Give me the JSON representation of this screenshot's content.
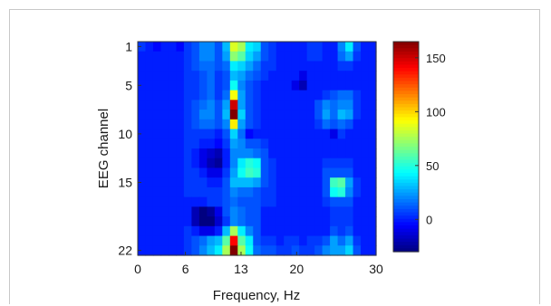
{
  "chart_data": {
    "type": "heatmap",
    "title": "",
    "xlabel": "Frequency, Hz",
    "ylabel": "EEG channel",
    "x_tick_labels": [
      "0",
      "6",
      "13",
      "20",
      "30"
    ],
    "x_tick_values": [
      0,
      6,
      13,
      20,
      30
    ],
    "y_tick_labels": [
      "1",
      "5",
      "10",
      "15",
      "22"
    ],
    "y_tick_values": [
      1,
      5,
      10,
      15,
      22
    ],
    "xlim": [
      0,
      30
    ],
    "ylim": [
      1,
      22
    ],
    "colorbar": {
      "colormap": "jet",
      "range": [
        -30,
        165
      ],
      "tick_labels": [
        "150",
        "100",
        "50",
        "0"
      ],
      "tick_values": [
        150,
        100,
        50,
        0
      ]
    },
    "frequencies": [
      0,
      1,
      2,
      3,
      4,
      5,
      6,
      7,
      8,
      9,
      10,
      11,
      12,
      13,
      14,
      15,
      16,
      17,
      18,
      19,
      20,
      21,
      22,
      23,
      24,
      25,
      26,
      27,
      28,
      29,
      30
    ],
    "channels": [
      1,
      2,
      3,
      4,
      5,
      6,
      7,
      8,
      9,
      10,
      11,
      12,
      13,
      14,
      15,
      16,
      17,
      18,
      19,
      20,
      21,
      22
    ],
    "values": [
      [
        5,
        0,
        -5,
        0,
        0,
        -5,
        5,
        10,
        20,
        20,
        10,
        30,
        85,
        75,
        40,
        35,
        10,
        5,
        0,
        0,
        0,
        0,
        5,
        5,
        0,
        0,
        20,
        40,
        10,
        0,
        0
      ],
      [
        0,
        0,
        0,
        0,
        0,
        0,
        5,
        10,
        20,
        20,
        10,
        25,
        70,
        60,
        35,
        25,
        10,
        5,
        0,
        0,
        0,
        0,
        5,
        5,
        0,
        0,
        15,
        25,
        5,
        0,
        0
      ],
      [
        0,
        0,
        0,
        0,
        0,
        0,
        5,
        10,
        15,
        15,
        10,
        15,
        40,
        35,
        25,
        15,
        5,
        5,
        0,
        0,
        0,
        0,
        0,
        0,
        0,
        0,
        5,
        5,
        0,
        0,
        0
      ],
      [
        0,
        0,
        0,
        0,
        0,
        0,
        5,
        5,
        10,
        15,
        5,
        10,
        30,
        25,
        15,
        10,
        5,
        0,
        0,
        0,
        0,
        -10,
        0,
        0,
        0,
        0,
        0,
        0,
        0,
        0,
        0
      ],
      [
        0,
        0,
        0,
        0,
        0,
        0,
        5,
        5,
        10,
        15,
        5,
        10,
        45,
        20,
        10,
        5,
        0,
        0,
        0,
        0,
        -10,
        -20,
        0,
        0,
        0,
        0,
        0,
        0,
        0,
        0,
        0
      ],
      [
        0,
        0,
        0,
        0,
        0,
        0,
        5,
        5,
        10,
        15,
        5,
        15,
        90,
        25,
        10,
        5,
        0,
        0,
        0,
        0,
        0,
        0,
        0,
        0,
        5,
        10,
        15,
        15,
        5,
        0,
        0
      ],
      [
        0,
        0,
        0,
        0,
        0,
        0,
        5,
        10,
        15,
        20,
        10,
        25,
        150,
        25,
        10,
        5,
        0,
        0,
        0,
        0,
        0,
        0,
        0,
        10,
        20,
        15,
        20,
        20,
        5,
        0,
        0
      ],
      [
        0,
        0,
        0,
        0,
        0,
        0,
        5,
        10,
        20,
        20,
        10,
        30,
        165,
        35,
        10,
        5,
        0,
        0,
        0,
        0,
        0,
        0,
        0,
        10,
        25,
        15,
        30,
        25,
        5,
        0,
        0
      ],
      [
        0,
        0,
        0,
        0,
        0,
        0,
        5,
        10,
        15,
        15,
        10,
        20,
        95,
        25,
        10,
        5,
        0,
        0,
        0,
        0,
        0,
        0,
        0,
        5,
        15,
        10,
        15,
        10,
        0,
        0,
        0
      ],
      [
        0,
        0,
        0,
        0,
        0,
        0,
        5,
        5,
        5,
        5,
        0,
        10,
        35,
        15,
        -5,
        0,
        0,
        0,
        0,
        0,
        0,
        0,
        0,
        0,
        0,
        -10,
        5,
        0,
        0,
        0,
        0
      ],
      [
        0,
        0,
        0,
        0,
        0,
        0,
        5,
        5,
        0,
        0,
        -5,
        5,
        25,
        20,
        10,
        10,
        5,
        0,
        0,
        0,
        0,
        0,
        0,
        0,
        0,
        0,
        0,
        0,
        0,
        0,
        0
      ],
      [
        0,
        0,
        0,
        0,
        0,
        0,
        5,
        0,
        -10,
        -15,
        -20,
        0,
        20,
        20,
        20,
        15,
        10,
        0,
        0,
        0,
        0,
        0,
        0,
        0,
        0,
        0,
        0,
        0,
        0,
        0,
        0
      ],
      [
        0,
        0,
        0,
        0,
        0,
        0,
        5,
        0,
        -10,
        -20,
        -25,
        0,
        20,
        40,
        50,
        45,
        10,
        5,
        0,
        0,
        0,
        0,
        0,
        0,
        5,
        5,
        5,
        5,
        0,
        0,
        0
      ],
      [
        0,
        0,
        0,
        0,
        0,
        0,
        5,
        5,
        0,
        -10,
        -10,
        5,
        25,
        45,
        55,
        50,
        10,
        5,
        0,
        0,
        0,
        0,
        0,
        0,
        10,
        10,
        10,
        10,
        0,
        0,
        0
      ],
      [
        0,
        0,
        0,
        0,
        0,
        0,
        5,
        5,
        5,
        0,
        0,
        10,
        30,
        30,
        30,
        25,
        10,
        5,
        0,
        0,
        0,
        0,
        0,
        0,
        10,
        55,
        60,
        25,
        5,
        0,
        0
      ],
      [
        0,
        0,
        0,
        0,
        0,
        0,
        5,
        5,
        5,
        5,
        5,
        10,
        20,
        15,
        15,
        10,
        5,
        5,
        0,
        0,
        0,
        0,
        0,
        0,
        10,
        45,
        50,
        20,
        5,
        0,
        0
      ],
      [
        0,
        0,
        0,
        0,
        0,
        0,
        0,
        0,
        0,
        5,
        5,
        10,
        15,
        10,
        10,
        10,
        5,
        5,
        0,
        0,
        0,
        0,
        0,
        0,
        5,
        10,
        10,
        10,
        0,
        0,
        0
      ],
      [
        0,
        0,
        0,
        0,
        0,
        0,
        0,
        -20,
        -30,
        -25,
        -10,
        10,
        20,
        15,
        10,
        10,
        0,
        0,
        0,
        0,
        0,
        0,
        0,
        0,
        0,
        5,
        5,
        5,
        0,
        0,
        0
      ],
      [
        0,
        0,
        0,
        0,
        0,
        0,
        0,
        -20,
        -30,
        -30,
        -15,
        5,
        20,
        15,
        10,
        10,
        0,
        0,
        0,
        0,
        0,
        0,
        0,
        0,
        0,
        5,
        5,
        5,
        0,
        0,
        0
      ],
      [
        0,
        0,
        0,
        0,
        0,
        0,
        5,
        0,
        -10,
        -10,
        0,
        30,
        75,
        40,
        20,
        10,
        0,
        0,
        0,
        0,
        0,
        0,
        0,
        0,
        0,
        10,
        5,
        10,
        0,
        0,
        0
      ],
      [
        0,
        0,
        0,
        0,
        0,
        0,
        5,
        10,
        15,
        25,
        30,
        60,
        140,
        60,
        40,
        10,
        5,
        5,
        0,
        5,
        5,
        0,
        5,
        5,
        10,
        25,
        15,
        25,
        5,
        0,
        0
      ],
      [
        0,
        0,
        0,
        0,
        0,
        0,
        5,
        10,
        20,
        30,
        40,
        75,
        165,
        75,
        45,
        15,
        10,
        10,
        5,
        5,
        10,
        5,
        5,
        10,
        20,
        25,
        25,
        35,
        10,
        0,
        0
      ]
    ]
  }
}
